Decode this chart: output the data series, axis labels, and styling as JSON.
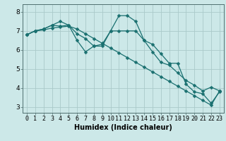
{
  "xlabel": "Humidex (Indice chaleur)",
  "bg_color": "#cce8e8",
  "grid_color": "#aacaca",
  "line_color": "#1a7070",
  "ylim": [
    2.7,
    8.4
  ],
  "xlim": [
    -0.5,
    23.5
  ],
  "yticks": [
    3,
    4,
    5,
    6,
    7,
    8
  ],
  "xticks": [
    0,
    1,
    2,
    3,
    4,
    5,
    6,
    7,
    8,
    9,
    10,
    11,
    12,
    13,
    14,
    15,
    16,
    17,
    18,
    19,
    20,
    21,
    22,
    23
  ],
  "line1_x": [
    0,
    1,
    2,
    3,
    4,
    5,
    6,
    7,
    8,
    9,
    10,
    11,
    12,
    13,
    14,
    15,
    16,
    17,
    18,
    19,
    20,
    21,
    22,
    23
  ],
  "line1_y": [
    6.8,
    7.0,
    7.1,
    7.3,
    7.5,
    7.3,
    6.5,
    5.9,
    6.2,
    6.3,
    7.0,
    7.8,
    7.8,
    7.5,
    6.5,
    6.3,
    5.8,
    5.3,
    5.3,
    4.2,
    3.8,
    3.7,
    3.2,
    3.8
  ],
  "line2_x": [
    0,
    1,
    2,
    3,
    4,
    5,
    6,
    7,
    8,
    9,
    10,
    11,
    12,
    13,
    14,
    15,
    16,
    17,
    18,
    19,
    20,
    21,
    22,
    23
  ],
  "line2_y": [
    6.8,
    7.0,
    7.1,
    7.3,
    7.25,
    7.3,
    6.85,
    6.6,
    6.2,
    6.2,
    7.0,
    7.0,
    7.0,
    7.0,
    6.5,
    5.9,
    5.35,
    5.2,
    4.8,
    4.4,
    4.15,
    3.85,
    4.05,
    3.85
  ],
  "line3_x": [
    0,
    1,
    2,
    3,
    4,
    5,
    6,
    7,
    8,
    9,
    10,
    11,
    12,
    13,
    14,
    15,
    16,
    17,
    18,
    19,
    20,
    21,
    22,
    23
  ],
  "line3_y": [
    6.8,
    7.0,
    7.05,
    7.15,
    7.2,
    7.25,
    7.1,
    6.85,
    6.6,
    6.35,
    6.1,
    5.85,
    5.6,
    5.35,
    5.1,
    4.85,
    4.6,
    4.35,
    4.1,
    3.85,
    3.6,
    3.35,
    3.1,
    3.85
  ],
  "tick_fontsize": 6.0,
  "xlabel_fontsize": 7.0,
  "marker_size": 2.5,
  "line_width": 0.9
}
